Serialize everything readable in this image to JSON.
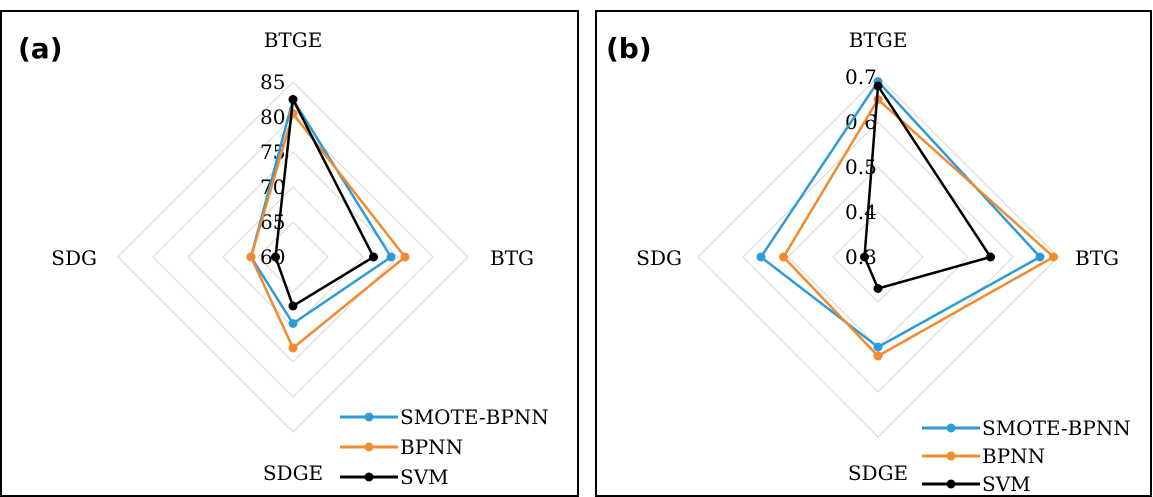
{
  "chart_data": [
    {
      "type": "radar",
      "panel_label": "(a)",
      "axes": [
        "BTGE",
        "BTG",
        "SDGE",
        "SDG"
      ],
      "ticks": [
        60,
        65,
        70,
        75,
        80,
        85
      ],
      "tick_labels": [
        "60",
        "65",
        "70",
        "75",
        "80",
        "85"
      ],
      "range": [
        60,
        85
      ],
      "grid": true,
      "legend_position": "bottom-right",
      "series": [
        {
          "name": "SMOTE-BPNN",
          "color": "#2E9BD6",
          "values": [
            82.5,
            74.0,
            69.5,
            66.0
          ]
        },
        {
          "name": "BPNN",
          "color": "#F28A30",
          "values": [
            80.5,
            76.0,
            73.0,
            66.0
          ]
        },
        {
          "name": "SVM",
          "color": "#000000",
          "values": [
            82.5,
            71.5,
            67.0,
            62.5
          ]
        }
      ]
    },
    {
      "type": "radar",
      "panel_label": "(b)",
      "axes": [
        "BTGE",
        "BTG",
        "SDGE",
        "SDG"
      ],
      "ticks": [
        0.3,
        0.4,
        0.5,
        0.6,
        0.7
      ],
      "tick_labels": [
        "0.3",
        "0.4",
        "0.5",
        "0.6",
        "0.7"
      ],
      "range": [
        0.3,
        0.7
      ],
      "grid": true,
      "legend_position": "bottom-right",
      "series": [
        {
          "name": "SMOTE-BPNN",
          "color": "#2E9BD6",
          "values": [
            0.69,
            0.66,
            0.5,
            0.56
          ]
        },
        {
          "name": "BPNN",
          "color": "#F28A30",
          "values": [
            0.65,
            0.69,
            0.52,
            0.51
          ]
        },
        {
          "name": "SVM",
          "color": "#000000",
          "values": [
            0.68,
            0.55,
            0.37,
            0.33
          ]
        }
      ]
    }
  ]
}
